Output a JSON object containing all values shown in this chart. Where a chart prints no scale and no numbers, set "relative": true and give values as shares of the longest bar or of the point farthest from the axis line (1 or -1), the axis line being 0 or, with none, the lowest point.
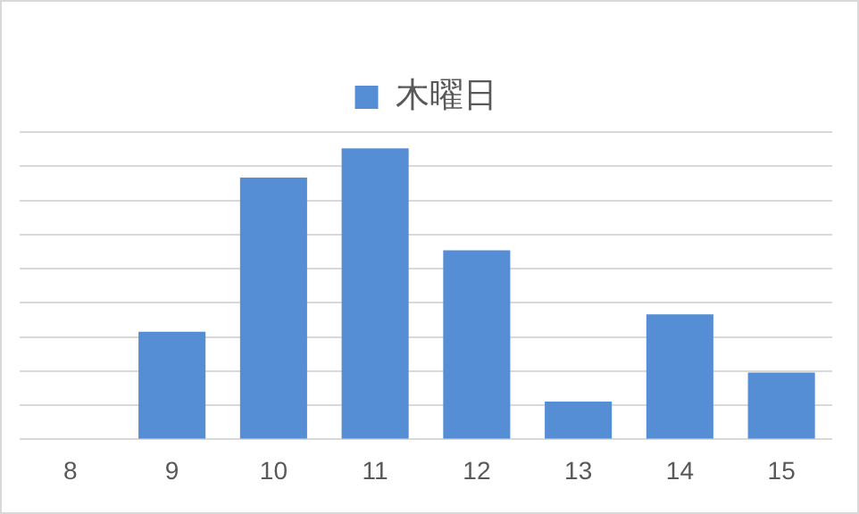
{
  "chart_data": {
    "type": "bar",
    "relative": true,
    "categories": [
      "8",
      "9",
      "10",
      "11",
      "12",
      "13",
      "14",
      "15"
    ],
    "series": [
      {
        "name": "木曜日",
        "color": "#558ed5",
        "values": [
          0,
          0.37,
          0.9,
          1,
          0.65,
          0.13,
          0.43,
          0.23
        ]
      }
    ],
    "grid": "y",
    "legend": "top"
  }
}
